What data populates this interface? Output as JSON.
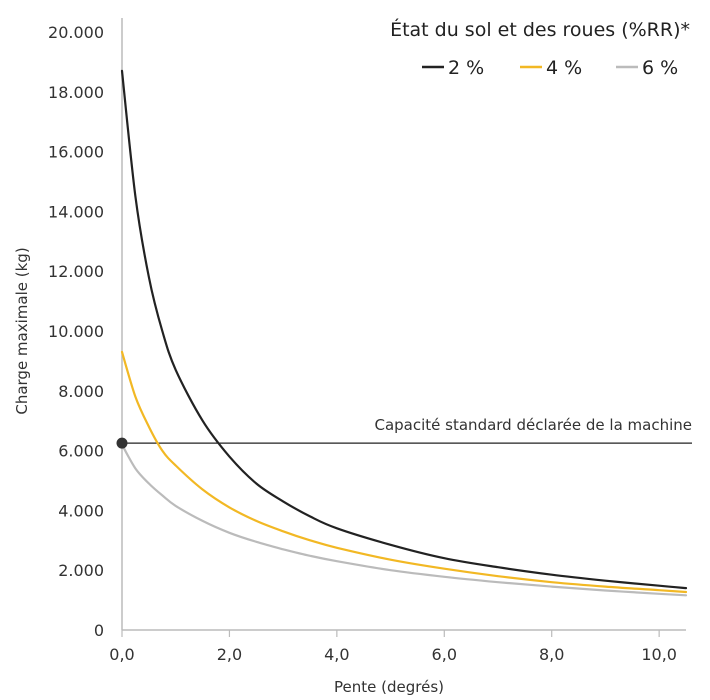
{
  "chart_data": {
    "type": "line",
    "title": "",
    "xlabel": "Pente (degrés)",
    "ylabel": "Charge maximale (kg)",
    "xlim": [
      0,
      10.5
    ],
    "ylim": [
      0,
      20000
    ],
    "xticks": [
      0,
      2,
      4,
      6,
      8,
      10
    ],
    "xtick_labels": [
      "0,0",
      "2,0",
      "4,0",
      "6,0",
      "8,0",
      "10,0"
    ],
    "yticks": [
      0,
      2000,
      4000,
      6000,
      8000,
      10000,
      12000,
      14000,
      16000,
      18000,
      20000
    ],
    "ytick_labels": [
      "0",
      "2.000",
      "4.000",
      "6.000",
      "8.000",
      "10.000",
      "12.000",
      "14.000",
      "16.000",
      "18.000",
      "20.000"
    ],
    "grid": false,
    "legend": {
      "title": "État du sol et des roues (%RR)*",
      "position": "top-right"
    },
    "series": [
      {
        "name": "2 %",
        "color": "#222222",
        "x": [
          0,
          0.25,
          0.5,
          0.75,
          1,
          1.5,
          2,
          2.5,
          3,
          3.5,
          4,
          5,
          6,
          7,
          8,
          9,
          10,
          10.5
        ],
        "y": [
          18700,
          14500,
          11800,
          10000,
          8700,
          7000,
          5800,
          4900,
          4300,
          3800,
          3400,
          2850,
          2400,
          2100,
          1850,
          1650,
          1480,
          1400
        ]
      },
      {
        "name": "4 %",
        "color": "#F2B824",
        "x": [
          0,
          0.25,
          0.5,
          0.75,
          1,
          1.5,
          2,
          2.5,
          3,
          3.5,
          4,
          5,
          6,
          7,
          8,
          9,
          10,
          10.5
        ],
        "y": [
          9300,
          7800,
          6800,
          6000,
          5500,
          4700,
          4100,
          3650,
          3300,
          3000,
          2750,
          2350,
          2050,
          1800,
          1600,
          1450,
          1330,
          1270
        ]
      },
      {
        "name": "6 %",
        "color": "#BBBBBB",
        "x": [
          0,
          0.25,
          0.5,
          0.75,
          1,
          1.5,
          2,
          2.5,
          3,
          3.5,
          4,
          5,
          6,
          7,
          8,
          9,
          10,
          10.5
        ],
        "y": [
          6200,
          5400,
          4900,
          4500,
          4150,
          3650,
          3250,
          2950,
          2700,
          2480,
          2300,
          2000,
          1780,
          1600,
          1450,
          1320,
          1210,
          1160
        ]
      }
    ],
    "reference_line": {
      "label": "Capacité standard déclarée de la machine",
      "y": 6250,
      "color": "#222222"
    },
    "marker_point": {
      "x": 0,
      "y": 6250,
      "color": "#333333"
    }
  }
}
